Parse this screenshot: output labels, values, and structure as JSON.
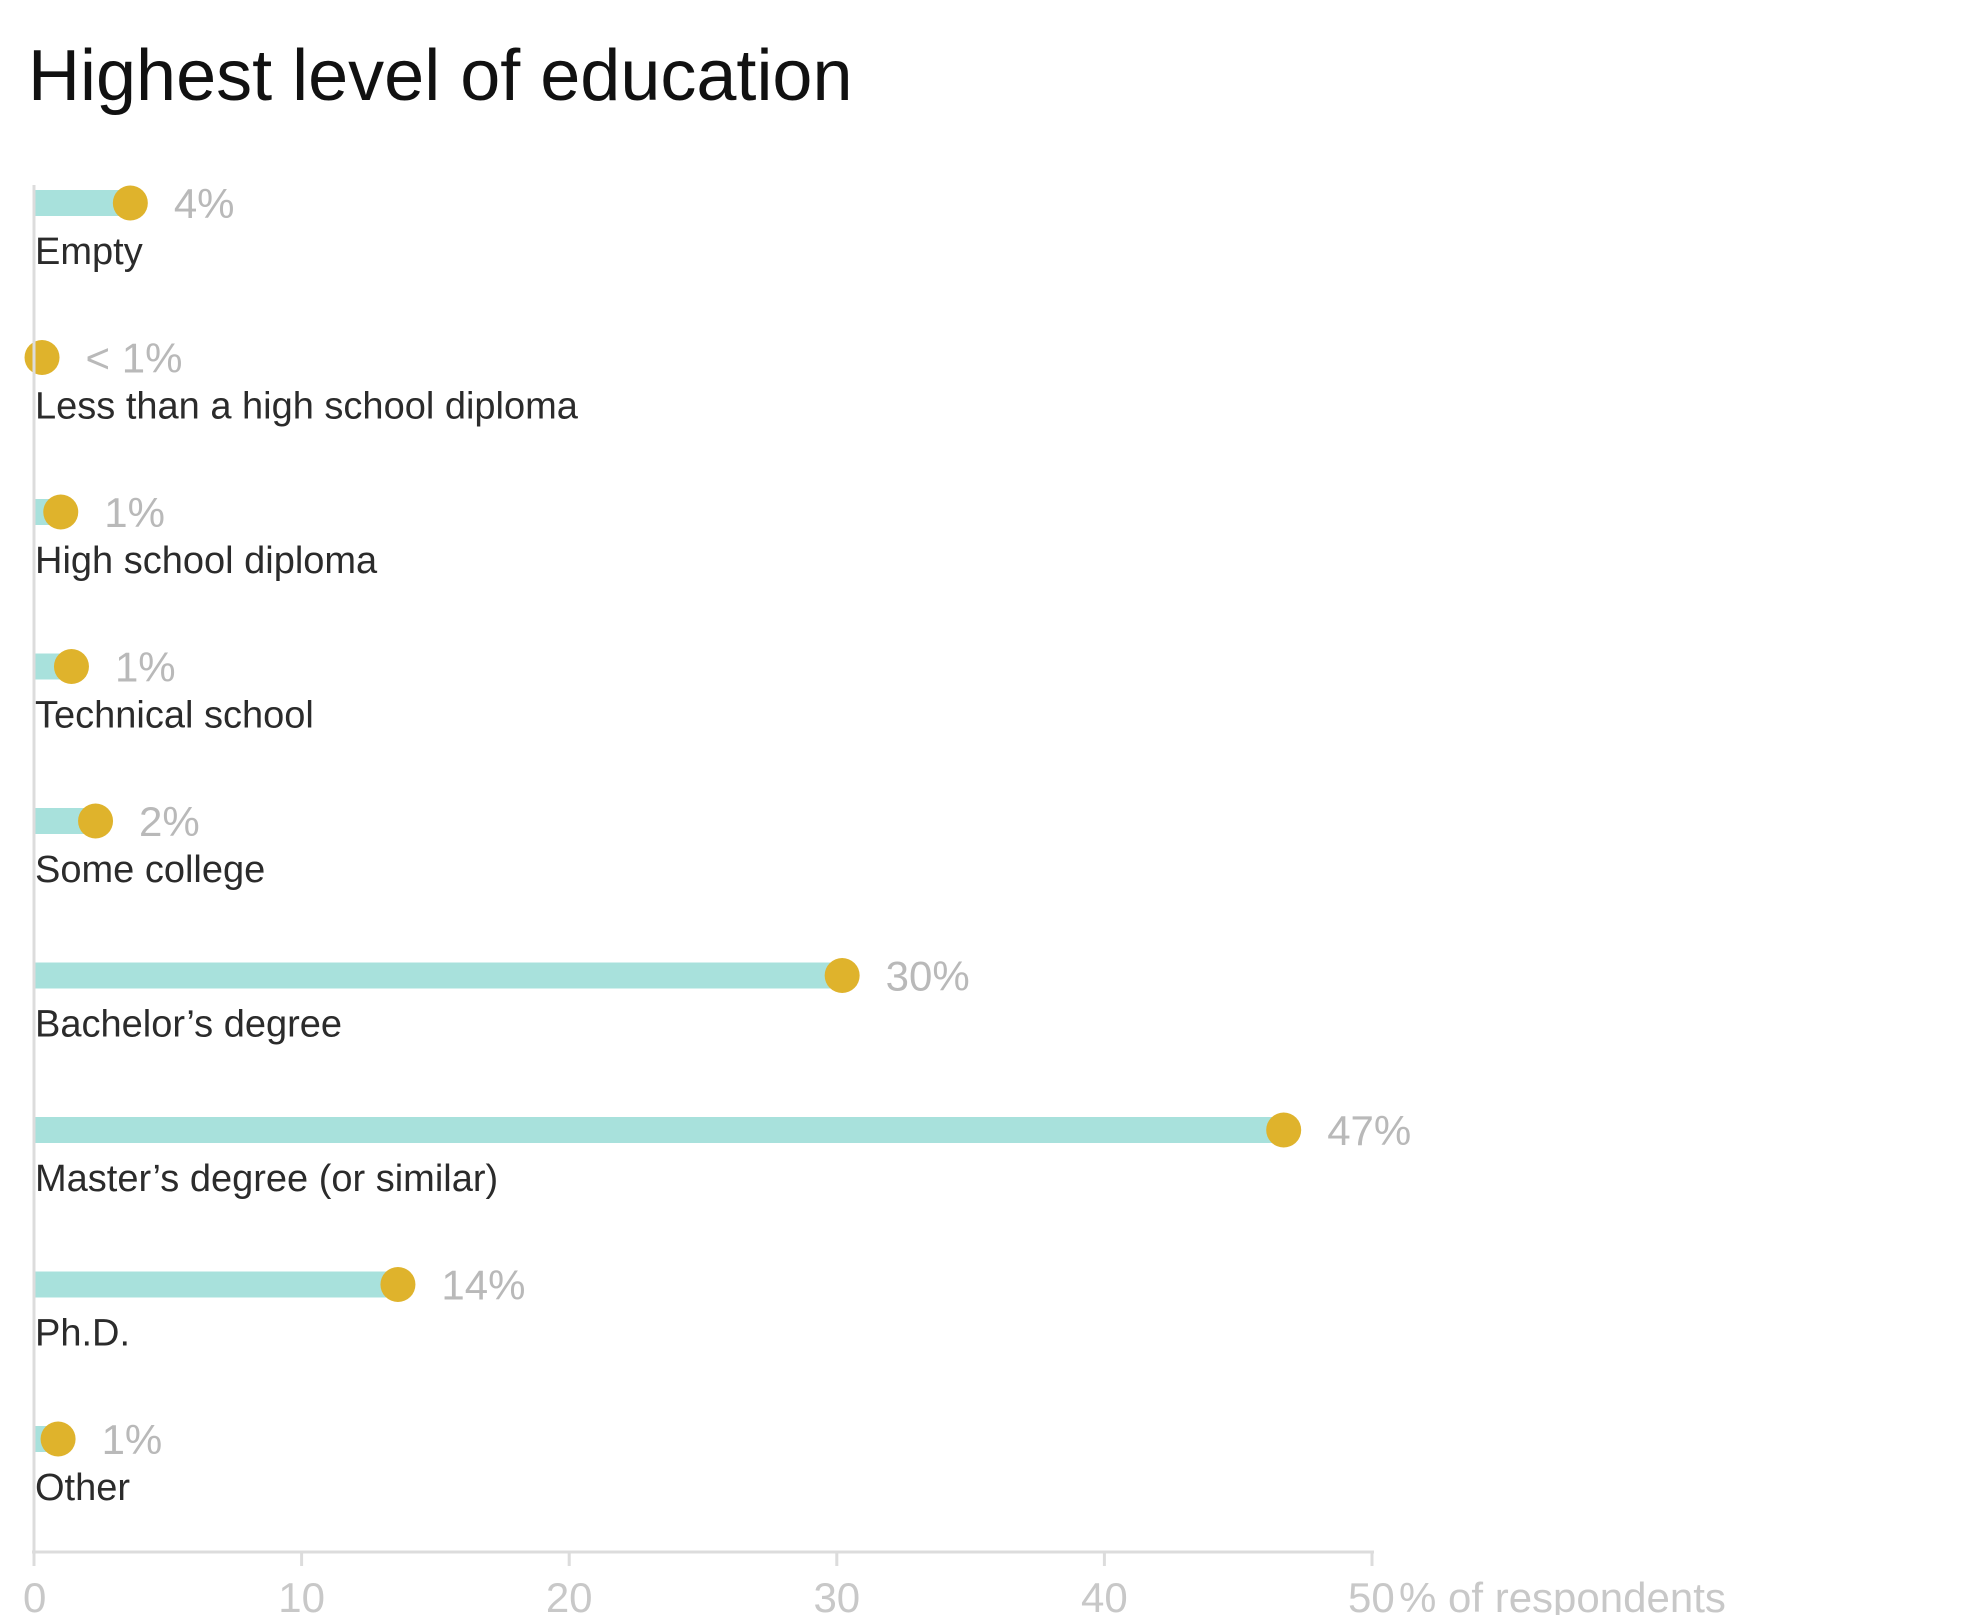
{
  "chart_data": {
    "type": "bar",
    "title": "Highest level of education",
    "categories": [
      "Empty",
      "Less than a high school diploma",
      "High school diploma",
      "Technical school",
      "Some college",
      "Bachelor’s degree",
      "Master’s degree (or similar)",
      "Ph.D.",
      "Other"
    ],
    "values": [
      3.6,
      0.3,
      1.0,
      1.4,
      2.3,
      30.2,
      46.7,
      13.6,
      0.9
    ],
    "value_labels": [
      "4%",
      "< 1%",
      "1%",
      "1%",
      "2%",
      "30%",
      "47%",
      "14%",
      "1%"
    ],
    "xlim": [
      0,
      50
    ],
    "x_ticks": [
      "0",
      "10",
      "20",
      "30",
      "40",
      "50"
    ],
    "xlabel": "% of respondents",
    "grid": false,
    "legend": "none",
    "orientation": "horizontal"
  },
  "colors": {
    "bar": "#a8e1dc",
    "dot": "#dfb32c",
    "value_label": "#b9b9b9",
    "axis": "#dcdcdc",
    "tick_label": "#c8c8c8",
    "category_label": "#2b2b2b",
    "title": "#111111"
  }
}
